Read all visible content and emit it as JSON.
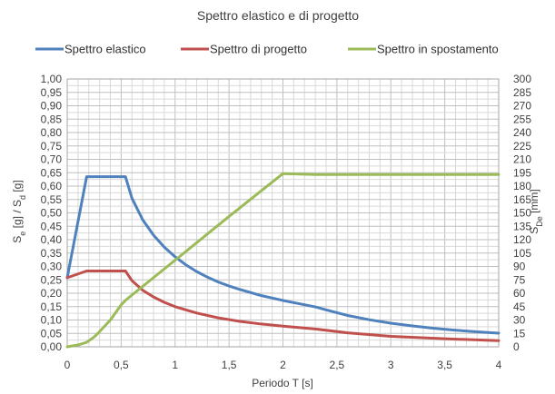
{
  "chart_data": {
    "type": "line",
    "title": "Spettro elastico e di progetto",
    "xlabel": "Periodo T [s]",
    "ylabel_left": {
      "parts": [
        {
          "t": "S"
        },
        {
          "t": "e",
          "sub": true
        },
        {
          "t": " [g] / S"
        },
        {
          "t": "d",
          "sub": true
        },
        {
          "t": " [g]"
        }
      ]
    },
    "ylabel_right": {
      "parts": [
        {
          "t": "S"
        },
        {
          "t": "De",
          "sub": true
        },
        {
          "t": " [mm]"
        }
      ]
    },
    "xlim": [
      0,
      4
    ],
    "ylim_left": [
      0,
      1
    ],
    "ylim_right": [
      0,
      300
    ],
    "x_ticks": [
      "0",
      "0,5",
      "1",
      "1,5",
      "2",
      "2,5",
      "3",
      "3,5",
      "4"
    ],
    "x_tick_values": [
      0,
      0.5,
      1,
      1.5,
      2,
      2.5,
      3,
      3.5,
      4
    ],
    "y_ticks_left": [
      "0,00",
      "0,05",
      "0,10",
      "0,15",
      "0,20",
      "0,25",
      "0,30",
      "0,35",
      "0,40",
      "0,45",
      "0,50",
      "0,55",
      "0,60",
      "0,65",
      "0,70",
      "0,75",
      "0,80",
      "0,85",
      "0,90",
      "0,95",
      "1,00"
    ],
    "y_ticks_right": [
      "0",
      "15",
      "30",
      "45",
      "60",
      "75",
      "90",
      "105",
      "120",
      "135",
      "150",
      "165",
      "180",
      "195",
      "210",
      "225",
      "240",
      "255",
      "270",
      "285",
      "300"
    ],
    "grid": true,
    "legend_position": "top",
    "series": [
      {
        "name": "Spettro elastico",
        "axis": "left",
        "color": "#4F81BD",
        "x": [
          0,
          0.18,
          0.54,
          0.6,
          0.7,
          0.8,
          0.9,
          1.0,
          1.1,
          1.2,
          1.3,
          1.4,
          1.5,
          1.6,
          1.8,
          2.0,
          2.2,
          2.31,
          2.4,
          2.6,
          2.8,
          3.0,
          3.2,
          3.4,
          3.6,
          3.8,
          4.0
        ],
        "y": [
          0.258,
          0.635,
          0.635,
          0.555,
          0.474,
          0.417,
          0.372,
          0.336,
          0.306,
          0.281,
          0.26,
          0.242,
          0.227,
          0.214,
          0.191,
          0.173,
          0.157,
          0.148,
          0.138,
          0.117,
          0.101,
          0.088,
          0.078,
          0.069,
          0.062,
          0.056,
          0.051
        ]
      },
      {
        "name": "Spettro di progetto",
        "axis": "left",
        "color": "#C0504D",
        "x": [
          0,
          0.18,
          0.54,
          0.6,
          0.7,
          0.8,
          0.9,
          1.0,
          1.2,
          1.4,
          1.6,
          1.8,
          2.0,
          2.31,
          2.6,
          3.0,
          3.5,
          4.0
        ],
        "y": [
          0.258,
          0.283,
          0.283,
          0.247,
          0.211,
          0.186,
          0.166,
          0.15,
          0.126,
          0.108,
          0.095,
          0.085,
          0.077,
          0.066,
          0.052,
          0.039,
          0.03,
          0.023
        ]
      },
      {
        "name": "Spettro in spostamento",
        "axis": "right",
        "color": "#9BBB59",
        "x": [
          0,
          0.1,
          0.18,
          0.25,
          0.3,
          0.4,
          0.5,
          0.54,
          0.6,
          1.0,
          1.5,
          2.0,
          2.31,
          2.5,
          3.0,
          3.5,
          4.0
        ],
        "y": [
          0,
          2,
          5,
          11,
          17,
          30,
          47,
          52,
          58,
          97,
          146,
          194,
          193,
          193,
          193,
          193,
          193
        ]
      }
    ]
  }
}
